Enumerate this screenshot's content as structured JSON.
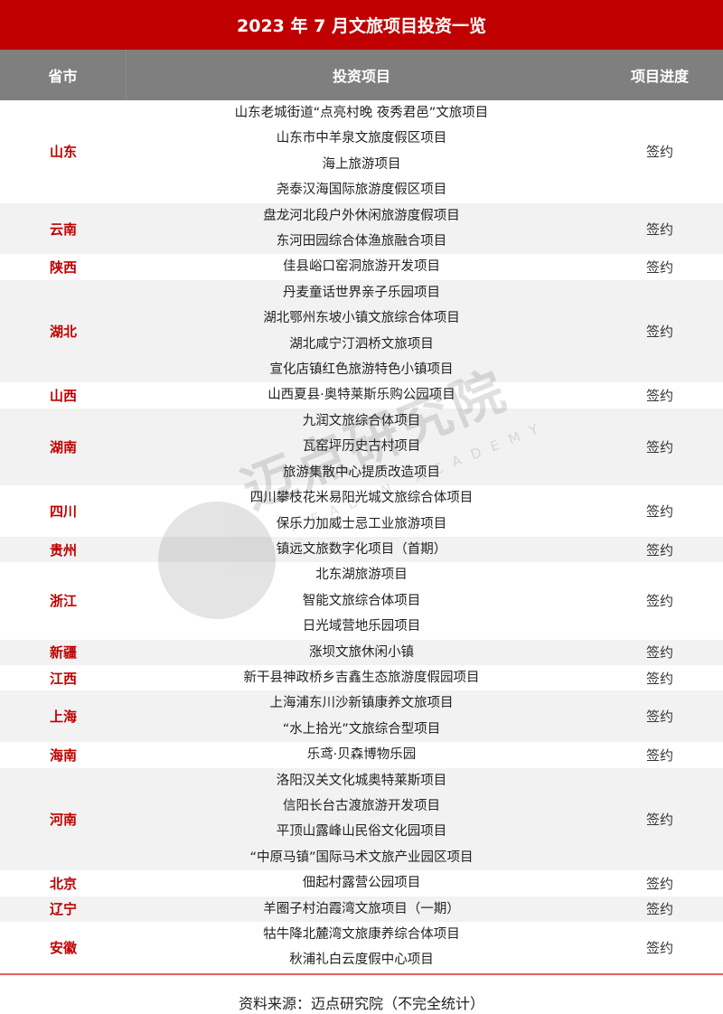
{
  "title": "2023 年 7 月文旅项目投资一览",
  "headers": {
    "province": "省市",
    "project": "投资项目",
    "progress": "项目进度"
  },
  "rows": [
    {
      "province": "山东",
      "projects": [
        "山东老城街道“点亮村晚 夜秀君邑”文旅项目",
        "山东市中羊泉文旅度假区项目",
        "海上旅游项目",
        "尧泰汉海国际旅游度假区项目"
      ],
      "progress": "签约"
    },
    {
      "province": "云南",
      "projects": [
        "盘龙河北段户外休闲旅游度假项目",
        "东河田园综合体渔旅融合项目"
      ],
      "progress": "签约"
    },
    {
      "province": "陕西",
      "projects": [
        "佳县峪口窑洞旅游开发项目"
      ],
      "progress": "签约"
    },
    {
      "province": "湖北",
      "projects": [
        "丹麦童话世界亲子乐园项目",
        "湖北鄂州东坡小镇文旅综合体项目",
        "湖北咸宁汀泗桥文旅项目",
        "宣化店镇红色旅游特色小镇项目"
      ],
      "progress": "签约"
    },
    {
      "province": "山西",
      "projects": [
        "山西夏县·奥特莱斯乐购公园项目"
      ],
      "progress": "签约"
    },
    {
      "province": "湖南",
      "projects": [
        "九润文旅综合体项目",
        "瓦窑坪历史古村项目",
        "旅游集散中心提质改造项目"
      ],
      "progress": "签约"
    },
    {
      "province": "四川",
      "projects": [
        "四川攀枝花米易阳光城文旅综合体项目",
        "保乐力加威士忌工业旅游项目"
      ],
      "progress": "签约"
    },
    {
      "province": "贵州",
      "projects": [
        "镇远文旅数字化项目（首期）"
      ],
      "progress": "签约"
    },
    {
      "province": "浙江",
      "projects": [
        "北东湖旅游项目",
        "智能文旅综合体项目",
        "日光域营地乐园项目"
      ],
      "progress": "签约"
    },
    {
      "province": "新疆",
      "projects": [
        "涨坝文旅休闲小镇"
      ],
      "progress": "签约"
    },
    {
      "province": "江西",
      "projects": [
        "新干县神政桥乡吉鑫生态旅游度假园项目"
      ],
      "progress": "签约"
    },
    {
      "province": "上海",
      "projects": [
        "上海浦东川沙新镇康养文旅项目",
        "“水上拾光”文旅综合型项目"
      ],
      "progress": "签约"
    },
    {
      "province": "海南",
      "projects": [
        "乐鸢·贝森博物乐园"
      ],
      "progress": "签约"
    },
    {
      "province": "河南",
      "projects": [
        "洛阳汉关文化城奥特莱斯项目",
        "信阳长台古渡旅游开发项目",
        "平顶山露峰山民俗文化园项目",
        "“中原马镇”国际马术文旅产业园区项目"
      ],
      "progress": "签约"
    },
    {
      "province": "北京",
      "projects": [
        "佃起村露营公园项目"
      ],
      "progress": "签约"
    },
    {
      "province": "辽宁",
      "projects": [
        "羊圈子村泊霞湾文旅项目（一期）"
      ],
      "progress": "签约"
    },
    {
      "province": "安徽",
      "projects": [
        "牯牛降北麓湾文旅康养综合体项目",
        "秋浦礼白云度假中心项目"
      ],
      "progress": "签约"
    }
  ],
  "source": "资料来源：迈点研究院（不完全统计）",
  "watermark": {
    "text": "迈点研究院",
    "sub": "MEADIN ACADEMY"
  },
  "colors": {
    "title_bg": "#c00000",
    "header_bg": "#7f7f7f",
    "province_text": "#c00000",
    "alt_row": "#f2f2f2"
  }
}
